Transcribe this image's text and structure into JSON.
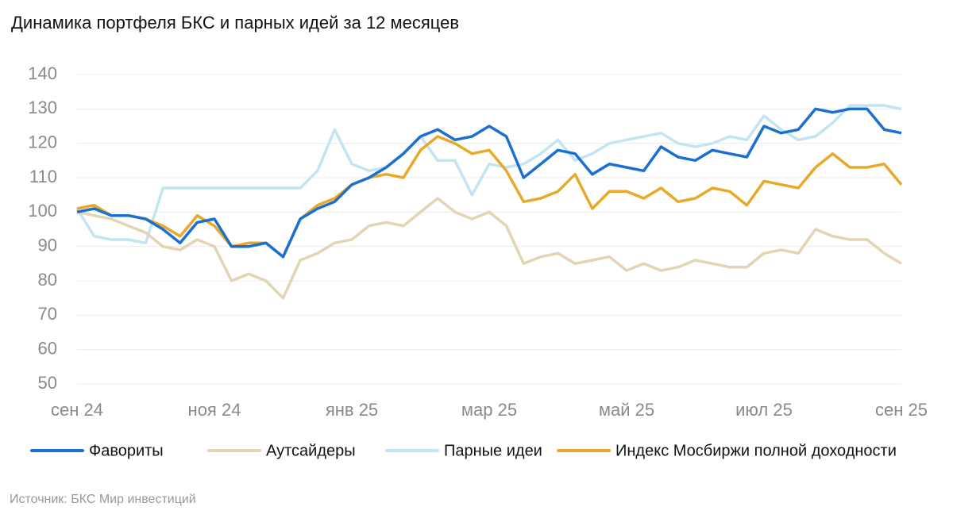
{
  "chart_data": {
    "type": "line",
    "title": "Динамика портфеля БКС и парных идей за 12 месяцев",
    "source": "Источник: БКС Мир инвестиций",
    "x": [
      0,
      0.25,
      0.5,
      0.75,
      1,
      1.25,
      1.5,
      1.75,
      2,
      2.25,
      2.5,
      2.75,
      3,
      3.25,
      3.5,
      3.75,
      4,
      4.25,
      4.5,
      4.75,
      5,
      5.25,
      5.5,
      5.75,
      6,
      6.25,
      6.5,
      6.75,
      7,
      7.25,
      7.5,
      7.75,
      8,
      8.25,
      8.5,
      8.75,
      9,
      9.25,
      9.5,
      9.75,
      10,
      10.25,
      10.5,
      10.75,
      11,
      11.25,
      11.5,
      11.75,
      12
    ],
    "xlim": [
      0,
      12
    ],
    "xticks": [
      {
        "value": 0,
        "label": "сен 24"
      },
      {
        "value": 2,
        "label": "ноя 24"
      },
      {
        "value": 4,
        "label": "янв 25"
      },
      {
        "value": 6,
        "label": "мар 25"
      },
      {
        "value": 8,
        "label": "май 25"
      },
      {
        "value": 10,
        "label": "июл 25"
      },
      {
        "value": 12,
        "label": "сен 25"
      }
    ],
    "ylim": [
      50,
      140
    ],
    "yticks": [
      50,
      60,
      70,
      80,
      90,
      100,
      110,
      120,
      130,
      140
    ],
    "grid": true,
    "series": [
      {
        "name": "Фавориты",
        "color": "#1a6fd1",
        "values": [
          100,
          101,
          99,
          99,
          98,
          95,
          91,
          97,
          98,
          90,
          90,
          91,
          87,
          98,
          101,
          103,
          108,
          110,
          113,
          117,
          122,
          124,
          121,
          122,
          125,
          122,
          110,
          114,
          118,
          117,
          111,
          114,
          113,
          112,
          119,
          116,
          115,
          118,
          117,
          116,
          125,
          123,
          124,
          130,
          129,
          130,
          130,
          124,
          123
        ]
      },
      {
        "name": "Аутсайдеры",
        "color": "#e3d4b4",
        "values": [
          100,
          99,
          98,
          96,
          94,
          90,
          89,
          92,
          90,
          80,
          82,
          80,
          75,
          86,
          88,
          91,
          92,
          96,
          97,
          96,
          100,
          104,
          100,
          98,
          100,
          96,
          85,
          87,
          88,
          85,
          86,
          87,
          83,
          85,
          83,
          84,
          86,
          85,
          84,
          84,
          88,
          89,
          88,
          95,
          93,
          92,
          92,
          88,
          85
        ]
      },
      {
        "name": "Парные идеи",
        "color": "#c3e4f1",
        "values": [
          101,
          93,
          92,
          92,
          91,
          107,
          107,
          107,
          107,
          107,
          107,
          107,
          107,
          107,
          112,
          124,
          114,
          112,
          113,
          117,
          122,
          115,
          115,
          105,
          114,
          113,
          114,
          117,
          121,
          115,
          117,
          120,
          121,
          122,
          123,
          120,
          119,
          120,
          122,
          121,
          128,
          124,
          121,
          122,
          126,
          131,
          131,
          131,
          130
        ]
      },
      {
        "name": "Индекс Мосбиржи полной доходности",
        "color": "#e8a92b",
        "values": [
          101,
          102,
          99,
          99,
          98,
          96,
          93,
          99,
          96,
          90,
          91,
          91,
          87,
          98,
          102,
          104,
          108,
          110,
          111,
          110,
          118,
          122,
          120,
          117,
          118,
          112,
          103,
          104,
          106,
          111,
          101,
          106,
          106,
          104,
          107,
          103,
          104,
          107,
          106,
          102,
          109,
          108,
          107,
          113,
          117,
          113,
          113,
          114,
          108
        ]
      }
    ]
  }
}
